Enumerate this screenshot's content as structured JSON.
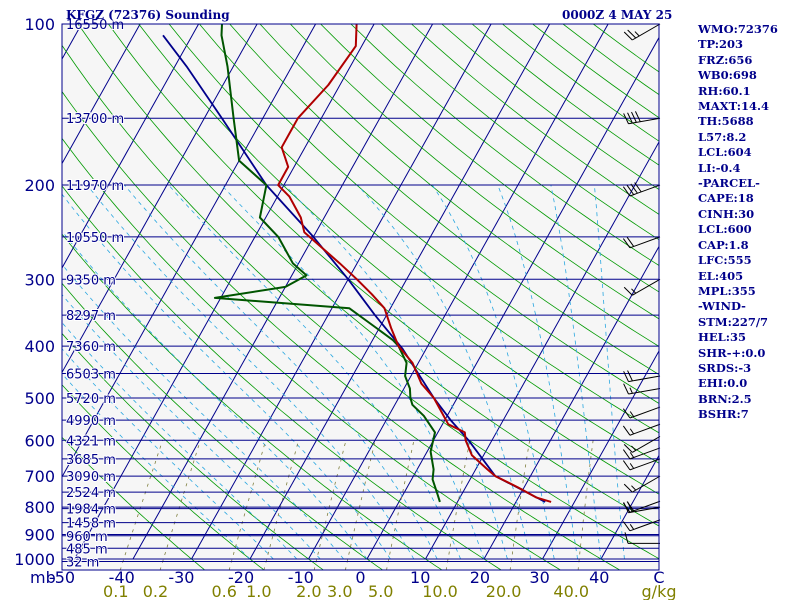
{
  "header": {
    "station": "KFGZ (72376) Sounding",
    "time": "0000Z  4 MAY 25"
  },
  "indices": [
    "WMO:72376",
    "TP:203",
    "FRZ:656",
    "WB0:698",
    "RH:60.1",
    "MAXT:14.4",
    "TH:5688",
    "L57:8.2",
    "LCL:604",
    "LI:-0.4",
    "-PARCEL-",
    "CAPE:18",
    "CINH:30",
    "LCL:600",
    "CAP:1.8",
    "LFC:555",
    "EL:405",
    "MPL:355",
    "-WIND-",
    "STM:227/7",
    "HEL:35",
    "SHR-+:0.0",
    "SRDS:-3",
    "EHI:0.0",
    "BRN:2.5",
    "BSHR:7"
  ],
  "colors": {
    "isobar": "#00008b",
    "isotherm": "#00008b",
    "dry_adiabat": "#009900",
    "moist_adiabat": "#2aa7e0",
    "mixing_ratio": "#7f7f3f",
    "temperature": "#b00000",
    "dewpoint": "#005500",
    "parcel": "#00008b",
    "text": "#00008b",
    "mixing_ratio_label": "#808000"
  },
  "chart_data": {
    "type": "skew-t log-p sounding",
    "y_axis": {
      "scale": "log",
      "unit": "mb",
      "range": [
        1000,
        100
      ],
      "pressure_ticks": [
        1000,
        900,
        800,
        700,
        600,
        500,
        400,
        300,
        200,
        100
      ]
    },
    "x_axis": {
      "unit": "C",
      "range": [
        -50,
        50
      ],
      "tick_labels": [
        "-50",
        "-40",
        "-30",
        "-20",
        "-10",
        "0",
        "10",
        "20",
        "30",
        "40",
        "C"
      ]
    },
    "height_labels": [
      {
        "p": 1011,
        "label": "32 m"
      },
      {
        "p": 955,
        "label": "485 m"
      },
      {
        "p": 905,
        "label": "960 m"
      },
      {
        "p": 855,
        "label": "1458 m"
      },
      {
        "p": 805,
        "label": "1984 m"
      },
      {
        "p": 750,
        "label": "2524 m"
      },
      {
        "p": 700,
        "label": "3090 m"
      },
      {
        "p": 650,
        "label": "3685 m"
      },
      {
        "p": 600,
        "label": "4321 m"
      },
      {
        "p": 550,
        "label": "4990 m"
      },
      {
        "p": 500,
        "label": "5720 m"
      },
      {
        "p": 450,
        "label": "6503 m"
      },
      {
        "p": 400,
        "label": "7360 m"
      },
      {
        "p": 350,
        "label": "8297 m"
      },
      {
        "p": 300,
        "label": "9350 m"
      },
      {
        "p": 250,
        "label": "10550 m"
      },
      {
        "p": 200,
        "label": "11970 m"
      },
      {
        "p": 150,
        "label": "13700 m"
      },
      {
        "p": 100,
        "label": "16550 m"
      }
    ],
    "mixing_ratio_labels": [
      "0.1",
      "0.2",
      "0.6",
      "1.0",
      "2.0",
      "3.0",
      "5.0",
      "10.0",
      "20.0",
      "40.0",
      "g/kg"
    ],
    "mixing_ratio_values": [
      0.1,
      0.2,
      0.6,
      1.0,
      2.0,
      3.0,
      5.0,
      10.0,
      20.0,
      40.0
    ],
    "temperature_profile": [
      [
        782,
        26
      ],
      [
        767,
        23
      ],
      [
        735,
        19
      ],
      [
        700,
        14
      ],
      [
        680,
        12
      ],
      [
        640,
        8
      ],
      [
        600,
        5.5
      ],
      [
        580,
        4.6
      ],
      [
        560,
        1
      ],
      [
        500,
        -4
      ],
      [
        470,
        -7.5
      ],
      [
        430,
        -11
      ],
      [
        400,
        -15
      ],
      [
        370,
        -18
      ],
      [
        340,
        -21
      ],
      [
        320,
        -24.5
      ],
      [
        300,
        -28.5
      ],
      [
        280,
        -33
      ],
      [
        260,
        -38
      ],
      [
        245,
        -42
      ],
      [
        230,
        -44
      ],
      [
        210,
        -48
      ],
      [
        200,
        -51
      ],
      [
        195,
        -51
      ],
      [
        185,
        -51
      ],
      [
        170,
        -54
      ],
      [
        150,
        -54
      ],
      [
        130,
        -52
      ],
      [
        110,
        -51
      ],
      [
        100,
        -53
      ]
    ],
    "dewpoint_profile": [
      [
        782,
        7
      ],
      [
        760,
        6
      ],
      [
        710,
        3.6
      ],
      [
        680,
        2.8
      ],
      [
        630,
        0.6
      ],
      [
        580,
        -0.5
      ],
      [
        540,
        -4
      ],
      [
        515,
        -7
      ],
      [
        500,
        -8
      ],
      [
        480,
        -9
      ],
      [
        455,
        -11
      ],
      [
        430,
        -12
      ],
      [
        400,
        -15
      ],
      [
        390,
        -16.5
      ],
      [
        370,
        -20.5
      ],
      [
        340,
        -27
      ],
      [
        325,
        -51
      ],
      [
        310,
        -40
      ],
      [
        295,
        -37.5
      ],
      [
        280,
        -41
      ],
      [
        250,
        -46
      ],
      [
        230,
        -51
      ],
      [
        200,
        -53
      ],
      [
        180,
        -60
      ],
      [
        150,
        -65
      ],
      [
        120,
        -71
      ],
      [
        105,
        -75
      ],
      [
        100,
        -76
      ]
    ],
    "parcel_profile": [
      [
        782,
        25
      ],
      [
        700,
        14
      ],
      [
        600,
        6
      ],
      [
        550,
        1
      ],
      [
        500,
        -4
      ],
      [
        450,
        -9
      ],
      [
        405,
        -14
      ],
      [
        350,
        -22
      ],
      [
        300,
        -30
      ],
      [
        250,
        -40
      ],
      [
        200,
        -53
      ],
      [
        150,
        -67
      ],
      [
        120,
        -78
      ],
      [
        105,
        -85
      ]
    ],
    "wind_barbs": [
      {
        "p": 935,
        "dir": 270,
        "kt": 10
      },
      {
        "p": 845,
        "dir": 250,
        "kt": 15
      },
      {
        "p": 800,
        "dir": 260,
        "kt": 20
      },
      {
        "p": 780,
        "dir": 250,
        "kt": 20
      },
      {
        "p": 700,
        "dir": 240,
        "kt": 15
      },
      {
        "p": 650,
        "dir": 250,
        "kt": 15
      },
      {
        "p": 620,
        "dir": 250,
        "kt": 15
      },
      {
        "p": 590,
        "dir": 240,
        "kt": 15
      },
      {
        "p": 560,
        "dir": 250,
        "kt": 15
      },
      {
        "p": 520,
        "dir": 250,
        "kt": 15
      },
      {
        "p": 480,
        "dir": 260,
        "kt": 15
      },
      {
        "p": 455,
        "dir": 260,
        "kt": 20
      },
      {
        "p": 300,
        "dir": 240,
        "kt": 15
      },
      {
        "p": 250,
        "dir": 250,
        "kt": 20
      },
      {
        "p": 200,
        "dir": 250,
        "kt": 40
      },
      {
        "p": 150,
        "dir": 260,
        "kt": 40
      },
      {
        "p": 100,
        "dir": 240,
        "kt": 25
      }
    ]
  }
}
